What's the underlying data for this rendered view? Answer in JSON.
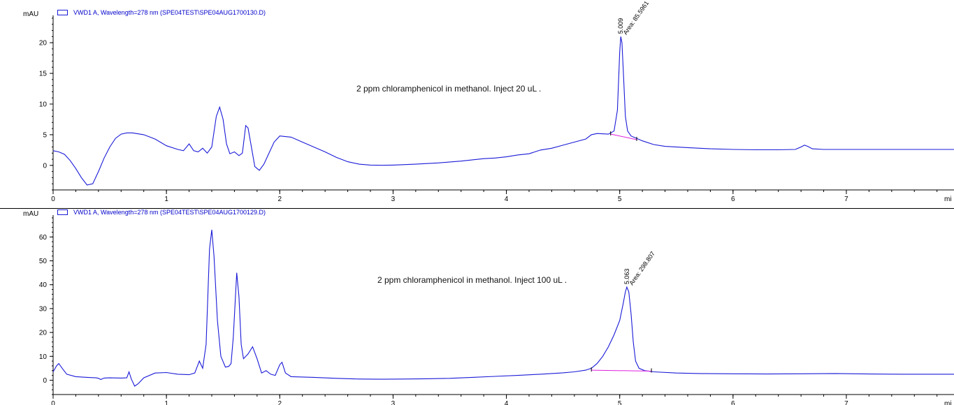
{
  "chart_data": [
    {
      "type": "line",
      "legend": "VWD1 A, Wavelength=278 nm (SPE04TEST\\SPE04AUG1700130.D)",
      "annotation": "2 ppm chloramphenicol in methanol. Inject 20 uL .",
      "ylabel": "mAU",
      "xlabel": "mi",
      "xlim": [
        0,
        7.95
      ],
      "ylim": [
        -4,
        24
      ],
      "x_ticks": [
        0,
        1,
        2,
        3,
        4,
        5,
        6,
        7
      ],
      "y_ticks": [
        0,
        5,
        10,
        15,
        20
      ],
      "peak": {
        "rt": "5.009",
        "area": "Area: 85.5961",
        "x": 5.009,
        "y": 21.0
      },
      "baseline": [
        [
          4.92,
          5.1
        ],
        [
          5.15,
          4.2
        ]
      ],
      "series": [
        {
          "color": "#1a1ad8",
          "points": [
            [
              0,
              2.4
            ],
            [
              0.05,
              2.2
            ],
            [
              0.1,
              1.8
            ],
            [
              0.15,
              0.8
            ],
            [
              0.2,
              -0.5
            ],
            [
              0.25,
              -2.0
            ],
            [
              0.3,
              -3.2
            ],
            [
              0.35,
              -3.0
            ],
            [
              0.4,
              -1.0
            ],
            [
              0.45,
              1.2
            ],
            [
              0.5,
              3.0
            ],
            [
              0.55,
              4.4
            ],
            [
              0.6,
              5.1
            ],
            [
              0.65,
              5.3
            ],
            [
              0.7,
              5.3
            ],
            [
              0.8,
              5.0
            ],
            [
              0.9,
              4.3
            ],
            [
              1.0,
              3.2
            ],
            [
              1.1,
              2.6
            ],
            [
              1.15,
              2.4
            ],
            [
              1.2,
              3.5
            ],
            [
              1.24,
              2.4
            ],
            [
              1.28,
              2.2
            ],
            [
              1.32,
              2.8
            ],
            [
              1.36,
              2.0
            ],
            [
              1.4,
              3.0
            ],
            [
              1.44,
              8.0
            ],
            [
              1.47,
              9.5
            ],
            [
              1.5,
              7.5
            ],
            [
              1.53,
              3.5
            ],
            [
              1.56,
              1.9
            ],
            [
              1.6,
              2.2
            ],
            [
              1.64,
              1.6
            ],
            [
              1.67,
              2.0
            ],
            [
              1.7,
              6.5
            ],
            [
              1.72,
              6.1
            ],
            [
              1.75,
              3.0
            ],
            [
              1.78,
              -0.2
            ],
            [
              1.82,
              -0.8
            ],
            [
              1.86,
              0.2
            ],
            [
              1.9,
              1.8
            ],
            [
              1.95,
              3.8
            ],
            [
              2.0,
              4.8
            ],
            [
              2.1,
              4.6
            ],
            [
              2.2,
              3.8
            ],
            [
              2.3,
              3.0
            ],
            [
              2.4,
              2.2
            ],
            [
              2.5,
              1.3
            ],
            [
              2.6,
              0.6
            ],
            [
              2.7,
              0.2
            ],
            [
              2.8,
              0.05
            ],
            [
              2.9,
              0.02
            ],
            [
              3.0,
              0.05
            ],
            [
              3.2,
              0.2
            ],
            [
              3.4,
              0.4
            ],
            [
              3.6,
              0.7
            ],
            [
              3.8,
              1.1
            ],
            [
              3.9,
              1.2
            ],
            [
              4.0,
              1.4
            ],
            [
              4.1,
              1.7
            ],
            [
              4.2,
              1.9
            ],
            [
              4.3,
              2.5
            ],
            [
              4.4,
              2.8
            ],
            [
              4.5,
              3.3
            ],
            [
              4.6,
              3.8
            ],
            [
              4.7,
              4.3
            ],
            [
              4.75,
              5.0
            ],
            [
              4.8,
              5.2
            ],
            [
              4.9,
              5.1
            ],
            [
              4.95,
              5.6
            ],
            [
              4.98,
              9.0
            ],
            [
              5.0,
              18.5
            ],
            [
              5.009,
              21.0
            ],
            [
              5.02,
              20.0
            ],
            [
              5.035,
              14.0
            ],
            [
              5.05,
              8.0
            ],
            [
              5.07,
              5.6
            ],
            [
              5.1,
              4.8
            ],
            [
              5.2,
              4.0
            ],
            [
              5.3,
              3.4
            ],
            [
              5.4,
              3.1
            ],
            [
              5.6,
              2.9
            ],
            [
              5.8,
              2.7
            ],
            [
              6.0,
              2.6
            ],
            [
              6.2,
              2.55
            ],
            [
              6.4,
              2.55
            ],
            [
              6.55,
              2.6
            ],
            [
              6.6,
              3.0
            ],
            [
              6.63,
              3.3
            ],
            [
              6.66,
              3.1
            ],
            [
              6.7,
              2.7
            ],
            [
              6.8,
              2.6
            ],
            [
              7.0,
              2.6
            ],
            [
              7.5,
              2.6
            ],
            [
              7.95,
              2.6
            ]
          ]
        }
      ]
    },
    {
      "type": "line",
      "legend": "VWD1 A, Wavelength=278 nm (SPE04TEST\\SPE04AUG1700129.D)",
      "annotation": "2 ppm chloramphenicol in methanol. Inject 100 uL .",
      "ylabel": "mAU",
      "xlabel": "mi",
      "xlim": [
        0,
        7.95
      ],
      "ylim": [
        -6,
        68
      ],
      "x_ticks": [
        0,
        1,
        2,
        3,
        4,
        5,
        6,
        7
      ],
      "y_ticks": [
        0,
        10,
        20,
        30,
        40,
        50,
        60
      ],
      "peak": {
        "rt": "5.063",
        "area": "Area: 298.807",
        "x": 5.063,
        "y": 39.0
      },
      "baseline": [
        [
          4.75,
          4.2
        ],
        [
          5.28,
          3.8
        ]
      ],
      "series": [
        {
          "color": "#1a1ad8",
          "points": [
            [
              0,
              3.5
            ],
            [
              0.03,
              6.0
            ],
            [
              0.05,
              7.0
            ],
            [
              0.08,
              5.0
            ],
            [
              0.12,
              2.5
            ],
            [
              0.2,
              1.5
            ],
            [
              0.3,
              1.2
            ],
            [
              0.38,
              1.0
            ],
            [
              0.4,
              0.8
            ],
            [
              0.42,
              0.3
            ],
            [
              0.45,
              0.9
            ],
            [
              0.5,
              1.0
            ],
            [
              0.6,
              0.9
            ],
            [
              0.65,
              1.0
            ],
            [
              0.67,
              3.5
            ],
            [
              0.69,
              0.5
            ],
            [
              0.72,
              -2.5
            ],
            [
              0.75,
              -1.5
            ],
            [
              0.8,
              1.0
            ],
            [
              0.9,
              3.0
            ],
            [
              1.0,
              3.2
            ],
            [
              1.1,
              2.5
            ],
            [
              1.2,
              2.3
            ],
            [
              1.25,
              3.0
            ],
            [
              1.29,
              8.0
            ],
            [
              1.32,
              5.0
            ],
            [
              1.35,
              15.0
            ],
            [
              1.38,
              55.0
            ],
            [
              1.4,
              63.0
            ],
            [
              1.42,
              52.0
            ],
            [
              1.45,
              25.0
            ],
            [
              1.48,
              10.0
            ],
            [
              1.52,
              5.5
            ],
            [
              1.55,
              5.8
            ],
            [
              1.57,
              7.0
            ],
            [
              1.59,
              18.0
            ],
            [
              1.62,
              45.0
            ],
            [
              1.64,
              35.0
            ],
            [
              1.66,
              15.0
            ],
            [
              1.68,
              9.0
            ],
            [
              1.72,
              11.0
            ],
            [
              1.76,
              14.0
            ],
            [
              1.8,
              9.0
            ],
            [
              1.84,
              3.0
            ],
            [
              1.88,
              4.0
            ],
            [
              1.92,
              2.5
            ],
            [
              1.96,
              2.0
            ],
            [
              2.0,
              6.5
            ],
            [
              2.02,
              7.5
            ],
            [
              2.05,
              3.0
            ],
            [
              2.1,
              1.5
            ],
            [
              2.3,
              1.2
            ],
            [
              2.5,
              0.8
            ],
            [
              2.7,
              0.5
            ],
            [
              2.9,
              0.4
            ],
            [
              3.1,
              0.5
            ],
            [
              3.3,
              0.6
            ],
            [
              3.5,
              0.8
            ],
            [
              3.7,
              1.2
            ],
            [
              3.9,
              1.6
            ],
            [
              4.1,
              2.0
            ],
            [
              4.3,
              2.5
            ],
            [
              4.5,
              3.1
            ],
            [
              4.6,
              3.5
            ],
            [
              4.7,
              4.2
            ],
            [
              4.75,
              5.0
            ],
            [
              4.8,
              7.0
            ],
            [
              4.85,
              10.0
            ],
            [
              4.9,
              14.0
            ],
            [
              4.95,
              19.0
            ],
            [
              5.0,
              25.0
            ],
            [
              5.03,
              32.0
            ],
            [
              5.05,
              37.0
            ],
            [
              5.063,
              39.0
            ],
            [
              5.08,
              37.0
            ],
            [
              5.1,
              28.0
            ],
            [
              5.12,
              16.0
            ],
            [
              5.14,
              8.0
            ],
            [
              5.17,
              5.0
            ],
            [
              5.22,
              4.0
            ],
            [
              5.3,
              3.5
            ],
            [
              5.5,
              3.0
            ],
            [
              5.7,
              2.8
            ],
            [
              6.0,
              2.7
            ],
            [
              6.3,
              2.6
            ],
            [
              6.6,
              2.7
            ],
            [
              6.9,
              2.8
            ],
            [
              7.2,
              2.6
            ],
            [
              7.5,
              2.5
            ],
            [
              7.95,
              2.5
            ]
          ]
        }
      ]
    }
  ]
}
